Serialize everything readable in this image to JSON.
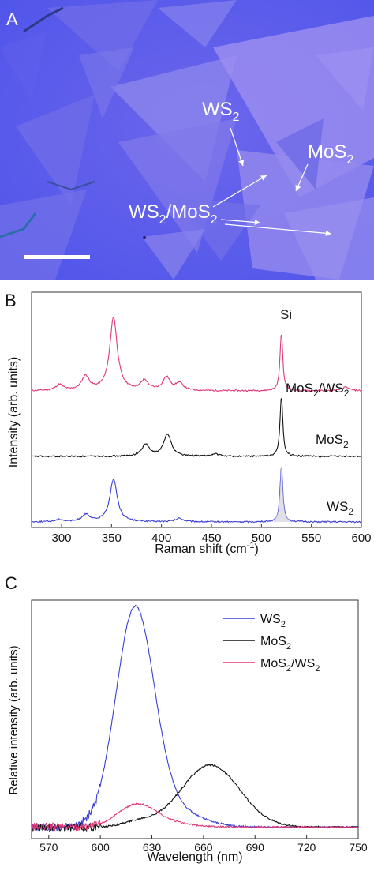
{
  "micrograph": {
    "panel_label": "A",
    "labels": {
      "ws2": [
        "WS",
        "2"
      ],
      "mos2": [
        "MoS",
        "2"
      ],
      "hetero": [
        "WS",
        "2",
        "/MoS",
        "2"
      ]
    },
    "colors": {
      "substrate": "#5a5ef0",
      "flake_light": "#8f86ee",
      "flake_mid": "#7a74ea",
      "annotation": "#ffffff"
    }
  },
  "chart_data": [
    {
      "panel_label": "B",
      "type": "line",
      "xlabel": "Raman shift (cm",
      "xlabel_sup": "-1",
      "xlabel_end": ")",
      "ylabel": "Intensity (arb. units)",
      "xlim": [
        270,
        600
      ],
      "xticks": [
        "300",
        "350",
        "400",
        "450",
        "500",
        "550",
        "600"
      ],
      "xtick_values": [
        300,
        350,
        400,
        450,
        500,
        550,
        600
      ],
      "annotation": "Si",
      "series": [
        {
          "label": [
            "MoS",
            "2",
            "/WS",
            "2"
          ],
          "color": "#e0397a",
          "peaks": [
            [
              298,
              0.05
            ],
            [
              324,
              0.12
            ],
            [
              352,
              0.62
            ],
            [
              383,
              0.08
            ],
            [
              405,
              0.11
            ],
            [
              418,
              0.06
            ],
            [
              520,
              0.5
            ],
            [
              584,
              0.03
            ]
          ]
        },
        {
          "label": [
            "MoS",
            "2"
          ],
          "color": "#111111",
          "peaks": [
            [
              384,
              0.1
            ],
            [
              406,
              0.19
            ],
            [
              454,
              0.02
            ],
            [
              520,
              0.52
            ]
          ]
        },
        {
          "label": [
            "WS",
            "2"
          ],
          "color": "#3a3fd6",
          "peaks": [
            [
              298,
              0.02
            ],
            [
              324,
              0.06
            ],
            [
              352,
              0.36
            ],
            [
              418,
              0.03
            ],
            [
              520,
              0.48
            ]
          ]
        }
      ]
    },
    {
      "panel_label": "C",
      "type": "line",
      "xlabel": "Wavelength (nm)",
      "ylabel": "Relative intensity (arb. units)",
      "xlim": [
        560,
        750
      ],
      "xticks": [
        "570",
        "600",
        "630",
        "660",
        "690",
        "720",
        "750"
      ],
      "xtick_values": [
        570,
        600,
        630,
        660,
        690,
        720,
        750
      ],
      "legend_position": "top-right",
      "series": [
        {
          "label": [
            "WS",
            "2"
          ],
          "color": "#3a3fd6",
          "peaks": [
            [
              620,
              1.0,
              11
            ],
            [
              636,
              0.1,
              18
            ]
          ]
        },
        {
          "label": [
            "MoS",
            "2"
          ],
          "color": "#111111",
          "peaks": [
            [
              664,
              0.3,
              17
            ],
            [
              622,
              0.025,
              9
            ]
          ]
        },
        {
          "label": [
            "MoS",
            "2",
            "/WS",
            "2"
          ],
          "color": "#e0397a",
          "peaks": [
            [
              621,
              0.1,
              11
            ],
            [
              636,
              0.02,
              15
            ]
          ]
        }
      ]
    }
  ]
}
